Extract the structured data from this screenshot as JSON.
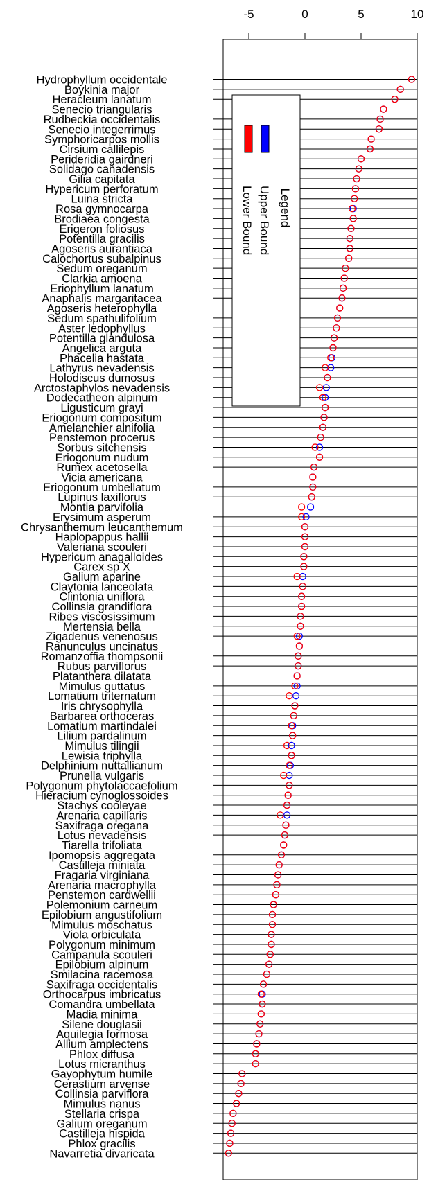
{
  "chart_data": {
    "type": "scatter",
    "orientation": "horizontal",
    "xlim": [
      -7.5,
      10
    ],
    "x_ticks": [
      -5,
      0,
      5,
      10
    ],
    "x_tick_labels": [
      "-5",
      "0",
      "5",
      "10"
    ],
    "x_axis_position": "top",
    "grid": false,
    "legend": {
      "title": "Legend",
      "position": "top-left",
      "rotated": true,
      "entries": [
        {
          "label": "Upper Bound",
          "color": "#0000ff"
        },
        {
          "label": "Lower Bound",
          "color": "#ff0000"
        }
      ]
    },
    "categories": [
      "Hydrophyllum occidentale",
      "Boykinia major",
      "Heracleum lanatum",
      "Senecio triangularis",
      "Rudbeckia occidentalis",
      "Senecio integerrimus",
      "Symphoricarpos mollis",
      "Cirsium callilepis",
      "Perideridia gairdneri",
      "Solidago canadensis",
      "Gilia capitata",
      "Hypericum perforatum",
      "Luina stricta",
      "Rosa gymnocarpa",
      "Brodiaea congesta",
      "Erigeron foliosus",
      "Potentilla gracilis",
      "Agoseris aurantiaca",
      "Calochortus subalpinus",
      "Sedum oreganum",
      "Clarkia amoena",
      "Eriophyllum lanatum",
      "Anaphalis margaritacea",
      "Agoseris heterophylla",
      "Sedum spathulifolium",
      "Aster ledophyllus",
      "Potentilla glandulosa",
      "Angelica arguta",
      "Phacelia hastata",
      "Lathyrus nevadensis",
      "Holodiscus dumosus",
      "Arctostaphylos nevadensis",
      "Dodecatheon alpinum",
      "Ligusticum grayi",
      "Eriogonum compositum",
      "Amelanchier alnifolia",
      "Penstemon procerus",
      "Sorbus sitchensis",
      "Eriogonum nudum",
      "Rumex acetosella",
      "Vicia americana",
      "Eriogonum umbellatum",
      "Lupinus laxiflorus",
      "Montia parvifolia",
      "Erysimum asperum",
      "Chrysanthemum leucanthemum",
      "Haplopappus hallii",
      "Valeriana scouleri",
      "Hypericum anagalloides",
      "Carex sp X",
      "Galium aparine",
      "Claytonia lanceolata",
      "Clintonia uniflora",
      "Collinsia grandiflora",
      "Ribes viscosissimum",
      "Mertensia bella",
      "Zigadenus venenosus",
      "Ranunculus uncinatus",
      "Romanzoffia thompsonii",
      "Rubus parviflorus",
      "Platanthera dilatata",
      "Mimulus guttatus",
      "Lomatium triternatum",
      "Iris chrysophylla",
      "Barbarea orthoceras",
      "Lomatium martindalei",
      "Lilium pardalinum",
      "Mimulus tilingii",
      "Lewisia triphylla",
      "Delphinium nuttallianum",
      "Prunella vulgaris",
      "Polygonum phytolaccaefolium",
      "Hieracium cynoglossoides",
      "Stachys cooleyae",
      "Arenaria capillaris",
      "Saxifraga oregana",
      "Lotus nevadensis",
      "Tiarella trifoliata",
      "Ipomopsis aggregata",
      "Castilleja miniata",
      "Fragaria virginiana",
      "Arenaria macrophylla",
      "Penstemon cardwellii",
      "Polemonium carneum",
      "Epilobium angustifolium",
      "Mimulus moschatus",
      "Viola orbiculata",
      "Polygonum minimum",
      "Campanula scouleri",
      "Epilobium alpinum",
      "Smilacina racemosa",
      "Saxifraga occidentalis",
      "Orthocarpus imbricatus",
      "Comandra umbellata",
      "Madia minima",
      "Silene douglasii",
      "Aquilegia formosa",
      "Allium amplectens",
      "Phlox diffusa",
      "Lotus micranthus",
      "Gayophytum humile",
      "Cerastium arvense",
      "Collinsia parviflora",
      "Mimulus nanus",
      "Stellaria crispa",
      "Galium oreganum",
      "Castilleja hispida",
      "Phlox gracilis",
      "Navarretia divaricata"
    ],
    "series": [
      {
        "name": "Upper Bound",
        "color": "#0000ff",
        "values": [
          9.5,
          8.5,
          8.0,
          7.0,
          6.7,
          6.6,
          5.9,
          5.8,
          5.0,
          4.8,
          4.6,
          4.5,
          4.4,
          4.3,
          4.3,
          4.1,
          4.0,
          4.0,
          3.9,
          3.6,
          3.5,
          3.4,
          3.3,
          3.1,
          2.9,
          2.8,
          2.6,
          2.5,
          2.4,
          2.3,
          2.0,
          1.9,
          1.8,
          1.8,
          1.7,
          1.6,
          1.4,
          1.3,
          1.3,
          0.8,
          0.7,
          0.7,
          0.6,
          0.5,
          0.1,
          0.0,
          0.0,
          0.0,
          -0.1,
          -0.1,
          -0.2,
          -0.2,
          -0.3,
          -0.3,
          -0.4,
          -0.4,
          -0.5,
          -0.5,
          -0.6,
          -0.6,
          -0.7,
          -0.7,
          -0.8,
          -0.9,
          -1.0,
          -1.1,
          -1.1,
          -1.2,
          -1.2,
          -1.3,
          -1.4,
          -1.4,
          -1.5,
          -1.6,
          -1.6,
          -1.7,
          -1.8,
          -1.9,
          -2.1,
          -2.3,
          -2.4,
          -2.5,
          -2.6,
          -2.8,
          -2.9,
          -2.9,
          -3.0,
          -3.0,
          -3.1,
          -3.2,
          -3.4,
          -3.7,
          -3.8,
          -3.8,
          -3.9,
          -4.0,
          -4.1,
          -4.3,
          -4.4,
          -4.4,
          -5.6,
          -5.7,
          -5.9,
          -6.1,
          -6.4,
          -6.5,
          -6.6,
          -6.7,
          -6.8
        ]
      },
      {
        "name": "Lower Bound",
        "color": "#ff0000",
        "values": [
          9.5,
          8.5,
          8.0,
          7.0,
          6.7,
          6.6,
          5.9,
          5.8,
          5.0,
          4.8,
          4.6,
          4.5,
          4.4,
          4.2,
          4.3,
          4.1,
          4.0,
          4.0,
          3.9,
          3.6,
          3.5,
          3.4,
          3.3,
          3.1,
          2.9,
          2.8,
          2.6,
          2.5,
          2.3,
          1.8,
          2.0,
          1.3,
          1.6,
          1.8,
          1.7,
          1.6,
          1.4,
          0.9,
          1.3,
          0.8,
          0.7,
          0.7,
          0.6,
          -0.3,
          -0.3,
          0.0,
          0.0,
          0.0,
          -0.1,
          -0.1,
          -0.7,
          -0.2,
          -0.3,
          -0.3,
          -0.4,
          -0.4,
          -0.7,
          -0.5,
          -0.6,
          -0.6,
          -0.7,
          -0.9,
          -1.4,
          -0.9,
          -1.0,
          -1.2,
          -1.1,
          -1.6,
          -1.2,
          -1.4,
          -1.9,
          -1.4,
          -1.5,
          -1.6,
          -2.2,
          -1.7,
          -1.8,
          -1.9,
          -2.1,
          -2.3,
          -2.4,
          -2.5,
          -2.6,
          -2.8,
          -2.9,
          -2.9,
          -3.0,
          -3.0,
          -3.1,
          -3.2,
          -3.4,
          -3.7,
          -3.9,
          -3.8,
          -3.9,
          -4.0,
          -4.1,
          -4.3,
          -4.4,
          -4.4,
          -5.6,
          -5.7,
          -5.9,
          -6.1,
          -6.4,
          -6.5,
          -6.6,
          -6.7,
          -6.8
        ]
      }
    ]
  }
}
